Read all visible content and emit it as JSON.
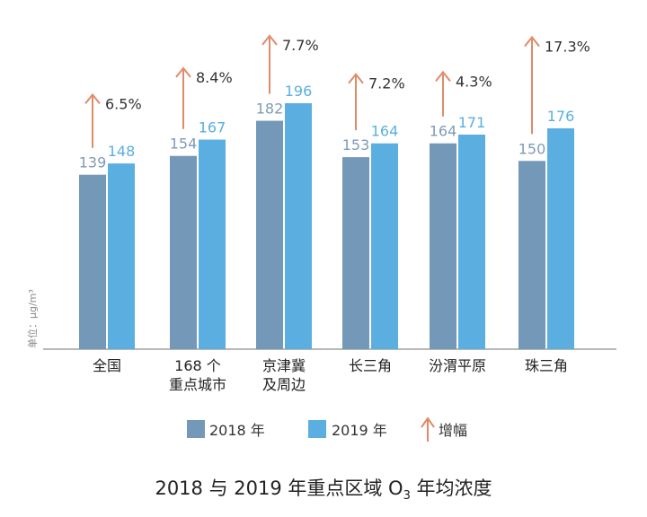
{
  "chart_data": {
    "type": "bar",
    "title": "2018 与 2019 年重点区域 O₃ 年均浓度",
    "title_parts": {
      "before": "2018 与 2019 年重点区域 O",
      "sub": "3",
      "after": " 年均浓度"
    },
    "ylabel": "单位：μg/m³",
    "categories": [
      "全国",
      "168 个重点城市",
      "京津冀及周边",
      "长三角",
      "汾渭平原",
      "珠三角"
    ],
    "category_lines": [
      [
        "全国"
      ],
      [
        "168 个",
        "重点城市"
      ],
      [
        "京津冀",
        "及周边"
      ],
      [
        "长三角"
      ],
      [
        "汾渭平原"
      ],
      [
        "珠三角"
      ]
    ],
    "series": [
      {
        "name": "2018 年",
        "values": [
          139,
          154,
          182,
          153,
          164,
          150
        ],
        "color": "#7398b8"
      },
      {
        "name": "2019 年",
        "values": [
          148,
          167,
          196,
          164,
          171,
          176
        ],
        "color": "#5aafe0"
      }
    ],
    "growth": {
      "name": "增幅",
      "labels": [
        "6.5%",
        "8.4%",
        "7.7%",
        "7.2%",
        "4.3%",
        "17.3%"
      ],
      "color": "#e08a68"
    },
    "label_color_2018": "#7f9bb6",
    "label_color_2019": "#5aafe0",
    "ylim": [
      0,
      200
    ],
    "grid": false,
    "legend_position": "bottom"
  }
}
